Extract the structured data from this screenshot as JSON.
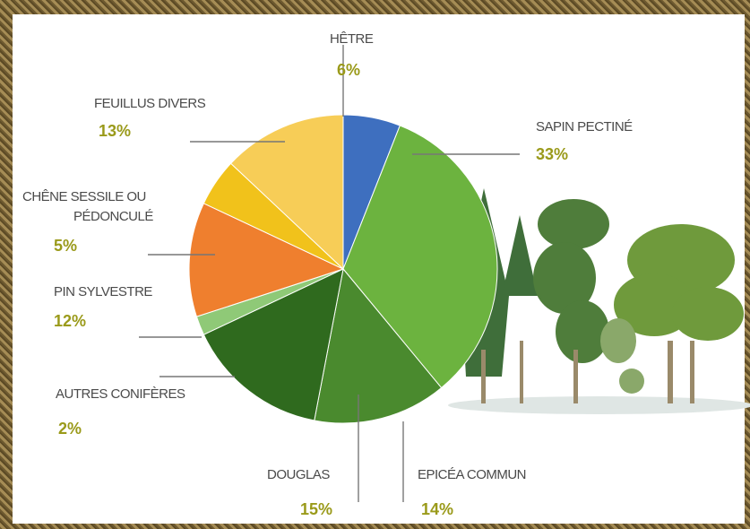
{
  "chart_data": {
    "type": "pie",
    "categories": [
      "HÊTRE",
      "SAPIN PECTINÉ",
      "EPICÉA COMMUN",
      "DOUGLAS",
      "AUTRES CONIFÈRES",
      "PIN SYLVESTRE",
      "CHÊNE SESSILE OU PÉDONCULÉ",
      "FEUILLUS DIVERS"
    ],
    "values": [
      6,
      33,
      14,
      15,
      2,
      12,
      5,
      13
    ],
    "labels": [
      "6%",
      "33%",
      "14%",
      "15%",
      "2%",
      "12%",
      "5%",
      "13%"
    ],
    "colors": [
      "#3e6fbf",
      "#6cb33f",
      "#4a8a2e",
      "#2f6a1e",
      "#8fc977",
      "#ef7f2e",
      "#f1c21b",
      "#f7cd57"
    ],
    "title": "",
    "legend": "labels around pie"
  }
}
